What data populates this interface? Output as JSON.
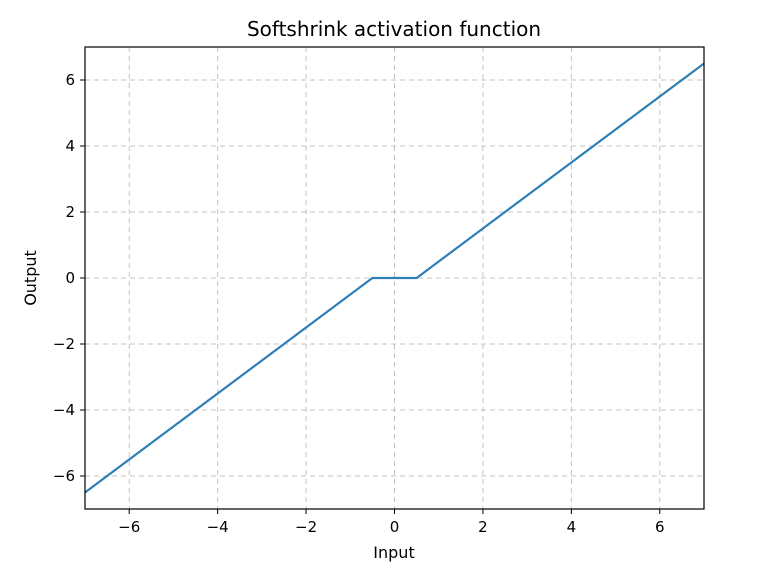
{
  "chart_data": {
    "type": "line",
    "title": "Softshrink activation function",
    "xlabel": "Input",
    "ylabel": "Output",
    "xlim": [
      -7,
      7
    ],
    "ylim": [
      -7,
      7
    ],
    "xticks": [
      -6,
      -4,
      -2,
      0,
      2,
      4,
      6
    ],
    "yticks": [
      -6,
      -4,
      -2,
      0,
      2,
      4,
      6
    ],
    "xtick_labels": [
      "−6",
      "−4",
      "−2",
      "0",
      "2",
      "4",
      "6"
    ],
    "ytick_labels": [
      "−6",
      "−4",
      "−2",
      "0",
      "2",
      "4",
      "6"
    ],
    "grid": true,
    "series": [
      {
        "color": "#2f7fb5",
        "x": [
          -7,
          -0.5,
          0.5,
          7
        ],
        "y": [
          -6.5,
          0,
          0,
          6.5
        ]
      }
    ]
  }
}
